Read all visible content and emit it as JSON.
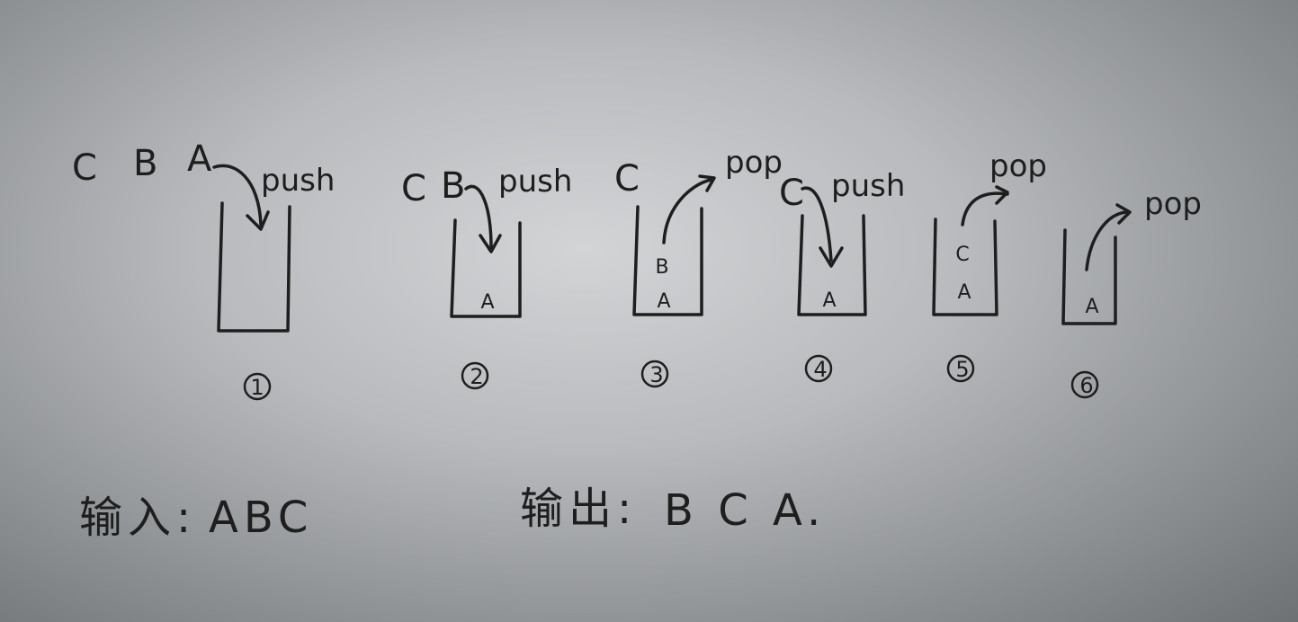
{
  "diagram": {
    "steps": [
      {
        "number": "①",
        "queue": [
          "C",
          "B",
          "A"
        ],
        "operation": "push",
        "stack": []
      },
      {
        "number": "②",
        "queue": [
          "C",
          "B"
        ],
        "operation": "push",
        "stack": [
          "A"
        ]
      },
      {
        "number": "③",
        "queue": [
          "C"
        ],
        "operation": "pop",
        "stack": [
          "B",
          "A"
        ]
      },
      {
        "number": "④",
        "queue": [
          "C"
        ],
        "operation": "push",
        "stack": [
          "A"
        ]
      },
      {
        "number": "⑤",
        "queue": [],
        "operation": "pop",
        "stack": [
          "C",
          "A"
        ]
      },
      {
        "number": "⑥",
        "queue": [],
        "operation": "pop",
        "stack": [
          "A"
        ]
      }
    ],
    "input_label": "输入:",
    "input_value": "ABC",
    "output_label": "输出:",
    "output_value": "B C A."
  }
}
